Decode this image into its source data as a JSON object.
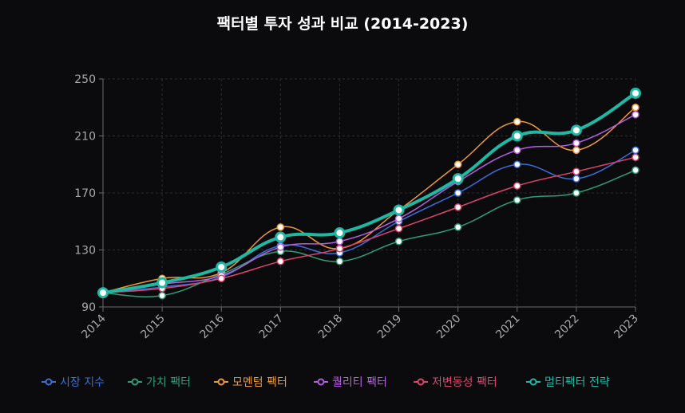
{
  "chart_data": {
    "type": "line",
    "title": "팩터별 투자 성과 비교 (2014-2023)",
    "xlabel": "",
    "ylabel": "",
    "ylim": [
      90,
      250
    ],
    "yticks": [
      90,
      130,
      170,
      210,
      250
    ],
    "grid": true,
    "legend_position": "bottom",
    "categories": [
      "2014",
      "2015",
      "2016",
      "2017",
      "2018",
      "2019",
      "2020",
      "2021",
      "2022",
      "2023"
    ],
    "series": [
      {
        "name": "시장 지수",
        "color": "#3b6fd9",
        "emphasis": false,
        "values": [
          100,
          104,
          111,
          133,
          128,
          150,
          170,
          190,
          180,
          200
        ]
      },
      {
        "name": "가치 팩터",
        "color": "#2f9e76",
        "emphasis": false,
        "values": [
          100,
          98,
          113,
          129,
          122,
          136,
          146,
          165,
          170,
          186
        ]
      },
      {
        "name": "모멘텀 팩터",
        "color": "#f0973a",
        "emphasis": false,
        "values": [
          100,
          110,
          114,
          146,
          131,
          158,
          190,
          220,
          200,
          230
        ]
      },
      {
        "name": "퀄리티 팩터",
        "color": "#b55ee0",
        "emphasis": false,
        "values": [
          100,
          106,
          112,
          132,
          136,
          152,
          178,
          200,
          205,
          225
        ]
      },
      {
        "name": "저변동성 팩터",
        "color": "#e0446e",
        "emphasis": false,
        "values": [
          100,
          103,
          110,
          122,
          131,
          145,
          160,
          175,
          185,
          195
        ]
      },
      {
        "name": "멀티팩터 전략",
        "color": "#20b8a3",
        "emphasis": true,
        "values": [
          100,
          107,
          118,
          139,
          142,
          158,
          180,
          210,
          214,
          240
        ]
      }
    ]
  }
}
